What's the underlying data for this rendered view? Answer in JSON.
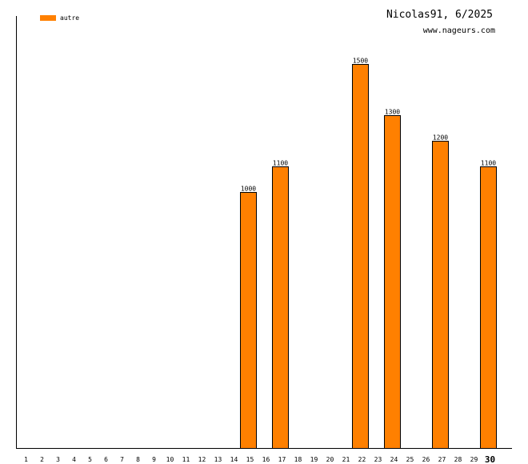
{
  "chart_data": {
    "type": "bar",
    "title": "Nicolas91, 6/2025",
    "subtitle": "www.nageurs.com",
    "xlabel": "",
    "ylabel": "",
    "categories": [
      "1",
      "2",
      "3",
      "4",
      "5",
      "6",
      "7",
      "8",
      "9",
      "10",
      "11",
      "12",
      "13",
      "14",
      "15",
      "16",
      "17",
      "18",
      "19",
      "20",
      "21",
      "22",
      "23",
      "24",
      "25",
      "26",
      "27",
      "28",
      "29",
      "30"
    ],
    "highlight_category": "30",
    "series": [
      {
        "name": "autre",
        "color": "#ff8000",
        "values": [
          null,
          null,
          null,
          null,
          null,
          null,
          null,
          null,
          null,
          null,
          null,
          null,
          null,
          null,
          1000,
          null,
          1100,
          null,
          null,
          null,
          null,
          1500,
          null,
          1300,
          null,
          null,
          1200,
          null,
          null,
          1100
        ]
      }
    ],
    "ylim": [
      0,
      1680
    ],
    "grid": false,
    "legend_position": "top-left"
  }
}
